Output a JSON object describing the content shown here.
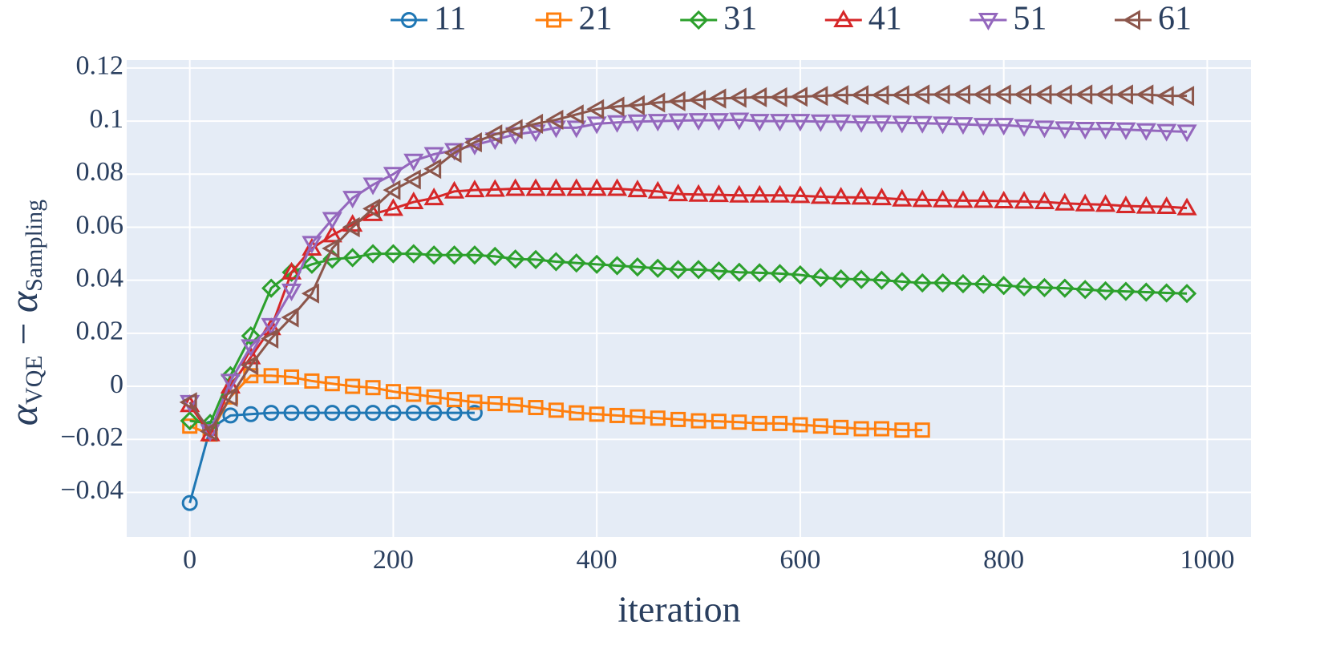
{
  "chart_data": {
    "type": "line",
    "xlabel": "iteration",
    "ylabel_parts": [
      "α",
      "VQE",
      " − ",
      "α",
      "Sampling"
    ],
    "xlim": [
      -62,
      1043
    ],
    "ylim": [
      -0.0568,
      0.123
    ],
    "xticks": [
      0,
      200,
      400,
      600,
      800,
      1000
    ],
    "yticks": [
      {
        "value": -0.04,
        "label": "−0.04"
      },
      {
        "value": -0.02,
        "label": "−0.02"
      },
      0,
      0.02,
      0.04,
      0.06,
      0.08,
      0.1,
      0.12
    ],
    "grid": true,
    "legend": "top",
    "series": [
      {
        "name": "11",
        "color": "#1f77b4",
        "marker": "circle",
        "x": [
          0,
          20,
          40,
          60,
          80,
          100,
          120,
          140,
          160,
          180,
          200,
          220,
          240,
          260,
          280
        ],
        "values": [
          -0.044,
          -0.016,
          -0.011,
          -0.0105,
          -0.01,
          -0.01,
          -0.01,
          -0.01,
          -0.01,
          -0.01,
          -0.01,
          -0.01,
          -0.01,
          -0.01,
          -0.01
        ]
      },
      {
        "name": "21",
        "color": "#ff7f0e",
        "marker": "square",
        "x": [
          0,
          20,
          40,
          60,
          80,
          100,
          120,
          140,
          160,
          180,
          200,
          220,
          240,
          260,
          280,
          300,
          320,
          340,
          360,
          380,
          400,
          420,
          440,
          460,
          480,
          500,
          520,
          540,
          560,
          580,
          600,
          620,
          640,
          660,
          680,
          700,
          720
        ],
        "values": [
          -0.015,
          -0.018,
          -0.004,
          0.004,
          0.004,
          0.0035,
          0.002,
          0.001,
          0.0,
          -0.0005,
          -0.002,
          -0.003,
          -0.004,
          -0.005,
          -0.006,
          -0.0065,
          -0.007,
          -0.008,
          -0.009,
          -0.01,
          -0.0105,
          -0.011,
          -0.0115,
          -0.012,
          -0.0125,
          -0.013,
          -0.0132,
          -0.0135,
          -0.014,
          -0.014,
          -0.0145,
          -0.015,
          -0.0155,
          -0.016,
          -0.016,
          -0.0165,
          -0.0165
        ]
      },
      {
        "name": "31",
        "color": "#2ca02c",
        "marker": "diamond",
        "x": [
          0,
          20,
          40,
          60,
          80,
          100,
          120,
          140,
          160,
          180,
          200,
          220,
          240,
          260,
          280,
          300,
          320,
          340,
          360,
          380,
          400,
          420,
          440,
          460,
          480,
          500,
          520,
          540,
          560,
          580,
          600,
          620,
          640,
          660,
          680,
          700,
          720,
          740,
          760,
          780,
          800,
          820,
          840,
          860,
          880,
          900,
          920,
          940,
          960,
          980
        ],
        "values": [
          -0.013,
          -0.014,
          0.004,
          0.019,
          0.037,
          0.043,
          0.046,
          0.048,
          0.0485,
          0.05,
          0.05,
          0.05,
          0.0495,
          0.0495,
          0.0495,
          0.049,
          0.048,
          0.0478,
          0.047,
          0.0465,
          0.046,
          0.0455,
          0.045,
          0.0445,
          0.044,
          0.044,
          0.0435,
          0.043,
          0.0428,
          0.0425,
          0.042,
          0.041,
          0.0405,
          0.0403,
          0.04,
          0.0395,
          0.039,
          0.039,
          0.0387,
          0.0385,
          0.038,
          0.0375,
          0.0372,
          0.037,
          0.0365,
          0.036,
          0.0358,
          0.0355,
          0.0352,
          0.035
        ]
      },
      {
        "name": "41",
        "color": "#d62728",
        "marker": "triangle-up",
        "x": [
          0,
          20,
          40,
          60,
          80,
          100,
          120,
          140,
          160,
          180,
          200,
          220,
          240,
          260,
          280,
          300,
          320,
          340,
          360,
          380,
          400,
          420,
          440,
          460,
          480,
          500,
          520,
          540,
          560,
          580,
          600,
          620,
          640,
          660,
          680,
          700,
          720,
          740,
          760,
          780,
          800,
          820,
          840,
          860,
          880,
          900,
          920,
          940,
          960,
          980
        ],
        "values": [
          -0.007,
          -0.018,
          0.0,
          0.011,
          0.022,
          0.043,
          0.052,
          0.057,
          0.061,
          0.065,
          0.067,
          0.0695,
          0.071,
          0.0735,
          0.074,
          0.0742,
          0.0745,
          0.0745,
          0.0745,
          0.0745,
          0.0745,
          0.0745,
          0.074,
          0.0735,
          0.0725,
          0.0723,
          0.0722,
          0.072,
          0.072,
          0.072,
          0.0718,
          0.0715,
          0.0713,
          0.0712,
          0.071,
          0.0705,
          0.0703,
          0.0702,
          0.07,
          0.07,
          0.0698,
          0.0697,
          0.0695,
          0.069,
          0.0687,
          0.0685,
          0.068,
          0.0678,
          0.0677,
          0.0672
        ]
      },
      {
        "name": "51",
        "color": "#9467bd",
        "marker": "triangle-down",
        "x": [
          0,
          20,
          40,
          60,
          80,
          100,
          120,
          140,
          160,
          180,
          200,
          220,
          240,
          260,
          280,
          300,
          320,
          340,
          360,
          380,
          400,
          420,
          440,
          460,
          480,
          500,
          520,
          540,
          560,
          580,
          600,
          620,
          640,
          660,
          680,
          700,
          720,
          740,
          760,
          780,
          800,
          820,
          840,
          860,
          880,
          900,
          920,
          940,
          960,
          980
        ],
        "values": [
          -0.006,
          -0.017,
          0.002,
          0.015,
          0.023,
          0.036,
          0.054,
          0.063,
          0.071,
          0.076,
          0.08,
          0.085,
          0.0875,
          0.089,
          0.091,
          0.093,
          0.095,
          0.096,
          0.0975,
          0.0975,
          0.099,
          0.0995,
          0.0998,
          0.1,
          0.1002,
          0.1003,
          0.1003,
          0.1005,
          0.1,
          0.1,
          0.1,
          0.0998,
          0.0998,
          0.0995,
          0.0995,
          0.0993,
          0.0992,
          0.099,
          0.0988,
          0.0985,
          0.0985,
          0.098,
          0.0975,
          0.0972,
          0.097,
          0.097,
          0.0968,
          0.0965,
          0.0962,
          0.096
        ]
      },
      {
        "name": "61",
        "color": "#8c564b",
        "marker": "triangle-left",
        "x": [
          0,
          20,
          40,
          60,
          80,
          100,
          120,
          140,
          160,
          180,
          200,
          220,
          240,
          260,
          280,
          300,
          320,
          340,
          360,
          380,
          400,
          420,
          440,
          460,
          480,
          500,
          520,
          540,
          560,
          580,
          600,
          620,
          640,
          660,
          680,
          700,
          720,
          740,
          760,
          780,
          800,
          820,
          840,
          860,
          880,
          900,
          920,
          940,
          960,
          980
        ],
        "values": [
          -0.006,
          -0.017,
          -0.004,
          0.008,
          0.018,
          0.026,
          0.035,
          0.052,
          0.06,
          0.067,
          0.074,
          0.078,
          0.082,
          0.088,
          0.092,
          0.095,
          0.097,
          0.099,
          0.1005,
          0.1025,
          0.1045,
          0.1055,
          0.106,
          0.107,
          0.1075,
          0.108,
          0.1085,
          0.1088,
          0.109,
          0.109,
          0.1092,
          0.1095,
          0.1098,
          0.1098,
          0.1098,
          0.1098,
          0.11,
          0.11,
          0.11,
          0.11,
          0.11,
          0.11,
          0.11,
          0.11,
          0.11,
          0.11,
          0.11,
          0.11,
          0.1095,
          0.1095
        ]
      }
    ]
  }
}
